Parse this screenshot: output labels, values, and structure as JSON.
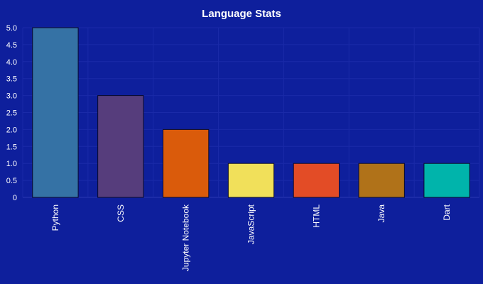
{
  "colors": {
    "background": "#0e1f9c",
    "text": "#ffffff",
    "grid": "#1a2aa8"
  },
  "chart_data": {
    "type": "bar",
    "title": "Language Stats",
    "xlabel": "",
    "ylabel": "",
    "categories": [
      "Python",
      "CSS",
      "Jupyter Notebook",
      "JavaScript",
      "HTML",
      "Java",
      "Dart"
    ],
    "values": [
      5,
      3,
      2,
      1,
      1,
      1,
      1
    ],
    "bar_colors": [
      "#3572a5",
      "#563d7c",
      "#da5b0b",
      "#f1e05a",
      "#e34c26",
      "#b07219",
      "#00b4ab"
    ],
    "ylim": [
      0,
      5
    ],
    "yticks": [
      "0",
      "0.5",
      "1.0",
      "1.5",
      "2.0",
      "2.5",
      "3.0",
      "3.5",
      "4.0",
      "4.5",
      "5.0"
    ],
    "grid": true,
    "legend": "none"
  }
}
